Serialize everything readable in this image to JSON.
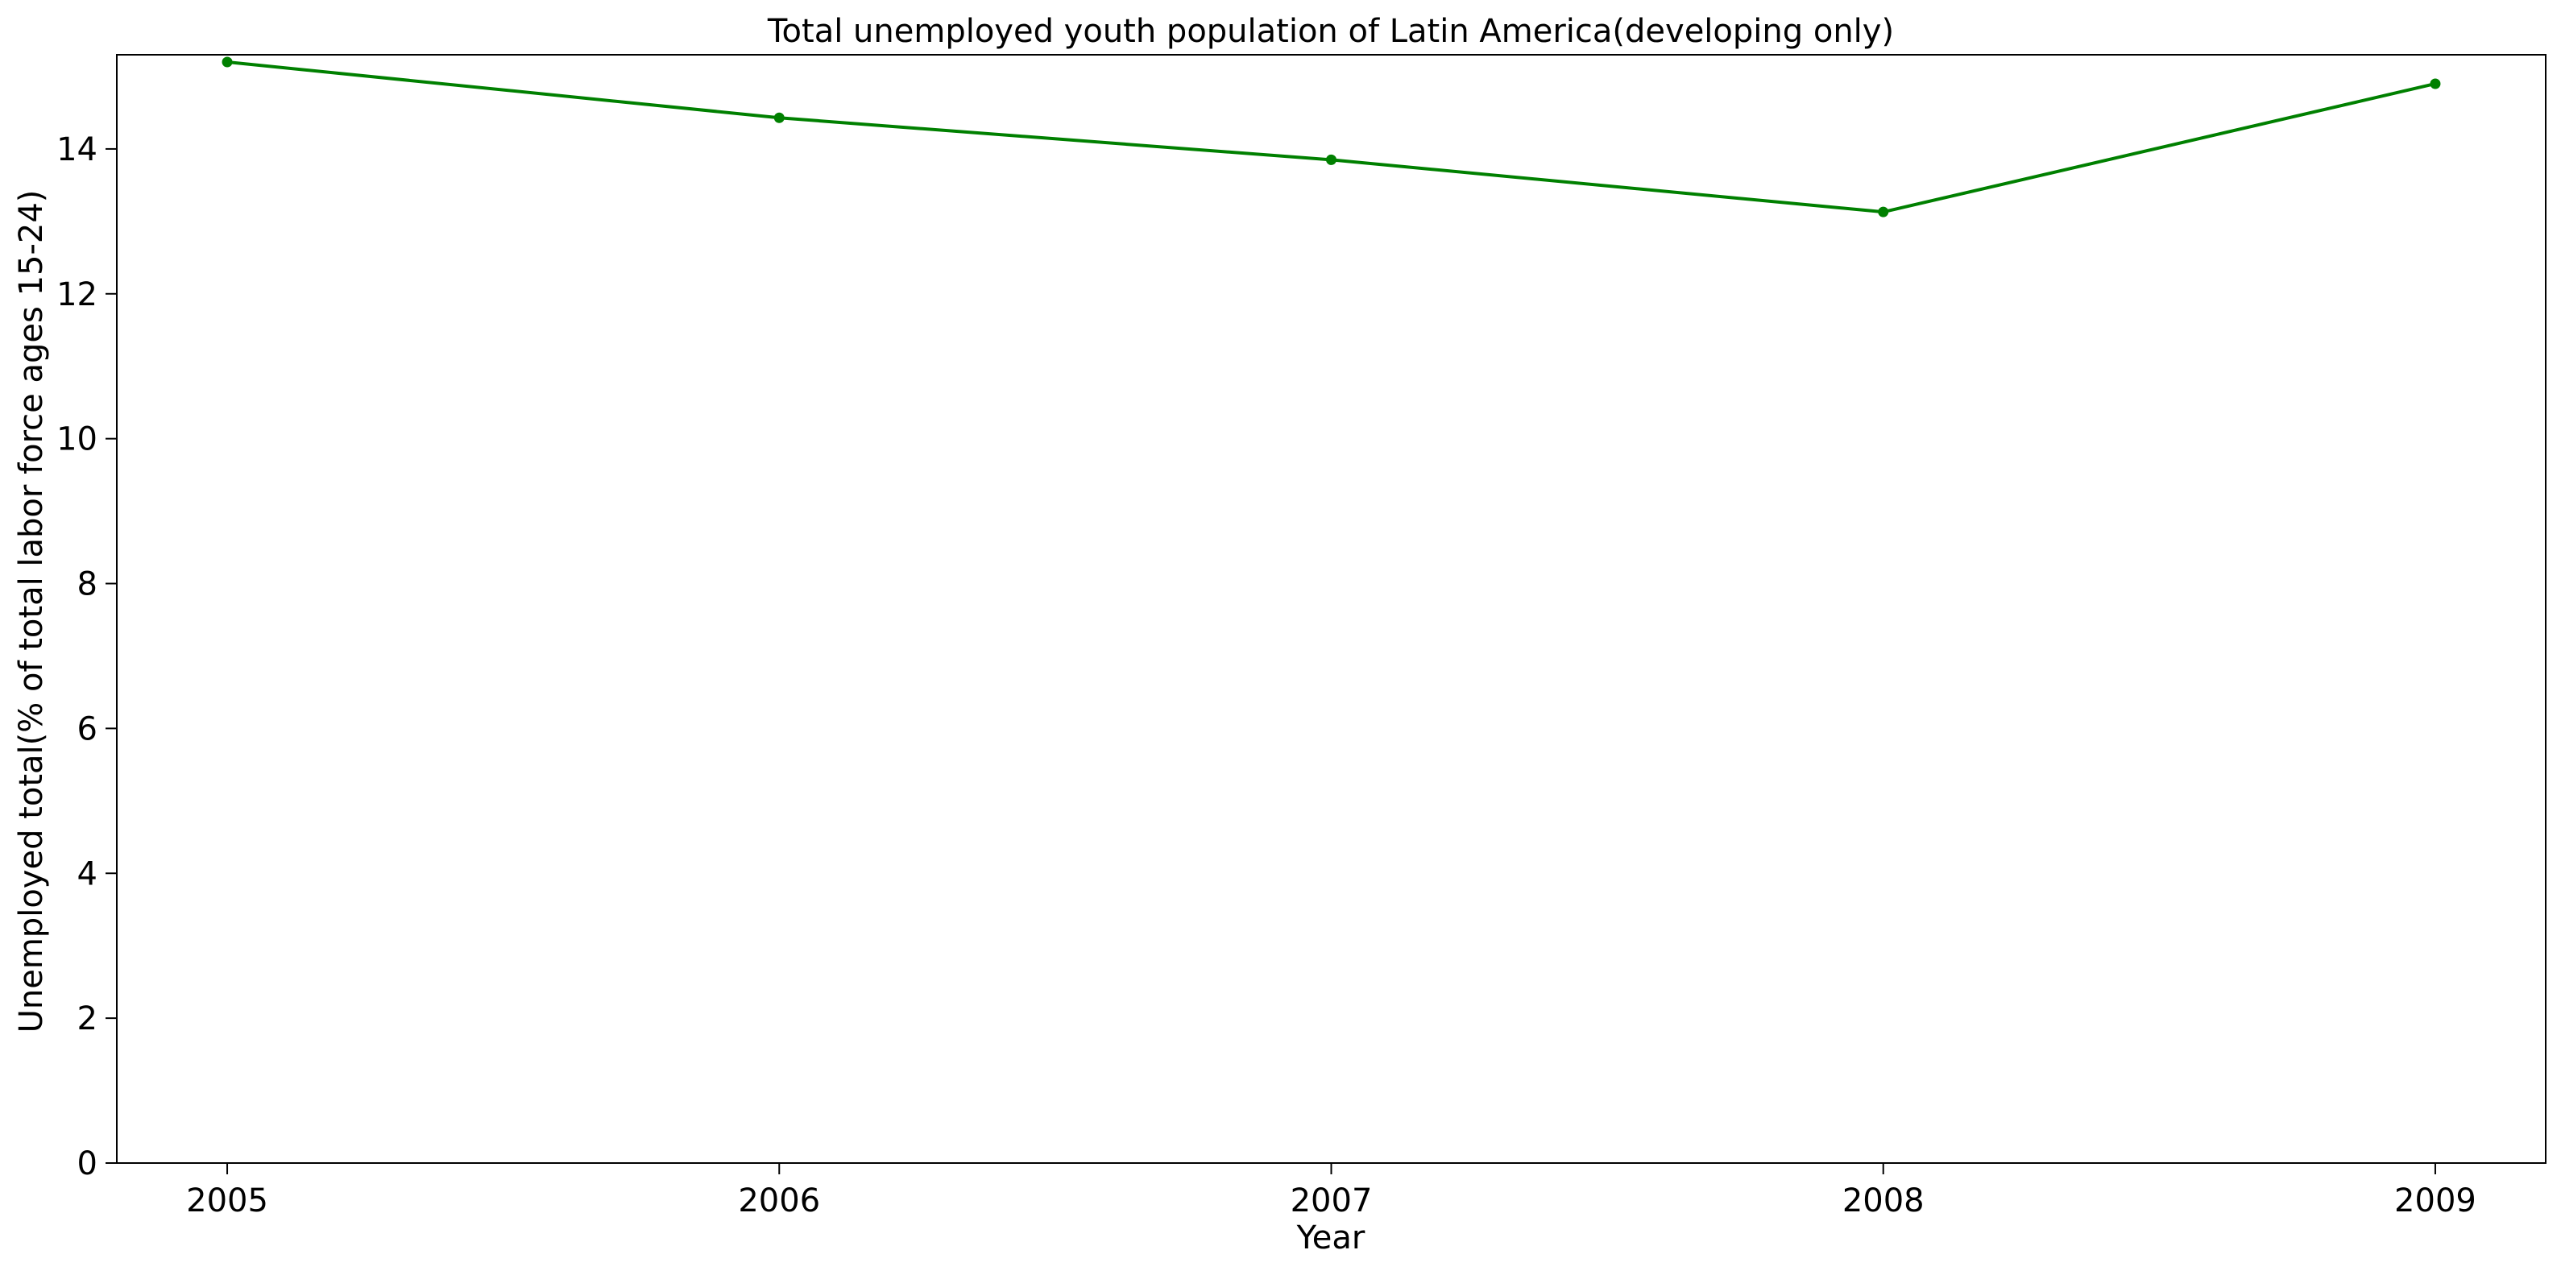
{
  "chart_data": {
    "type": "line",
    "title": "Total unemployed youth population of Latin America(developing only)",
    "xlabel": "Year",
    "ylabel": "Unemployed total(% of total labor force ages 15-24)",
    "x": [
      2005,
      2006,
      2007,
      2008,
      2009
    ],
    "x_ticks": [
      "2005",
      "2006",
      "2007",
      "2008",
      "2009"
    ],
    "xlim": [
      2004.8,
      2009.2
    ],
    "ylim": [
      0,
      15.3
    ],
    "y_ticks": [
      0,
      2,
      4,
      6,
      8,
      10,
      12,
      14
    ],
    "y_tick_labels": [
      "0",
      "2",
      "4",
      "6",
      "8",
      "10",
      "12",
      "14"
    ],
    "series": [
      {
        "values": [
          15.2,
          14.43,
          13.85,
          13.13,
          14.9
        ],
        "color": "#008000",
        "marker": "circle"
      }
    ],
    "grid": false,
    "legend": false
  }
}
